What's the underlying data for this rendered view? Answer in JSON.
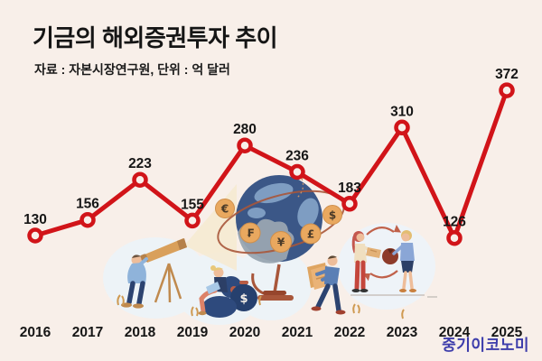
{
  "page": {
    "background": "#f8efe9"
  },
  "header": {
    "title": "기금의 해외증권투자 추이",
    "subtitle": "자료 : 자본시장연구원, 단위 : 억 달러"
  },
  "watermark": {
    "text": "중기이코노미",
    "color": "#3d3dab"
  },
  "chart_data": {
    "type": "line",
    "title": "기금의 해외증권투자 추이",
    "source_label": "자료 : 자본시장연구원",
    "unit_label": "단위 : 억 달러",
    "categories": [
      "2016",
      "2017",
      "2018",
      "2019",
      "2020",
      "2021",
      "2022",
      "2023",
      "2024",
      "2025"
    ],
    "values": [
      130,
      156,
      223,
      155,
      280,
      236,
      183,
      310,
      126,
      372
    ],
    "xlabel": "",
    "ylabel": "억 달러",
    "ylim": [
      100,
      400
    ],
    "grid": false,
    "legend": "none",
    "data_labels": true,
    "line_color": "#d11419",
    "marker": "open-circle",
    "label_color": "#161616"
  },
  "illustration": {
    "coin_symbols": [
      "€",
      "₣",
      "¥",
      "£",
      "$"
    ],
    "sack_symbol": "$"
  }
}
